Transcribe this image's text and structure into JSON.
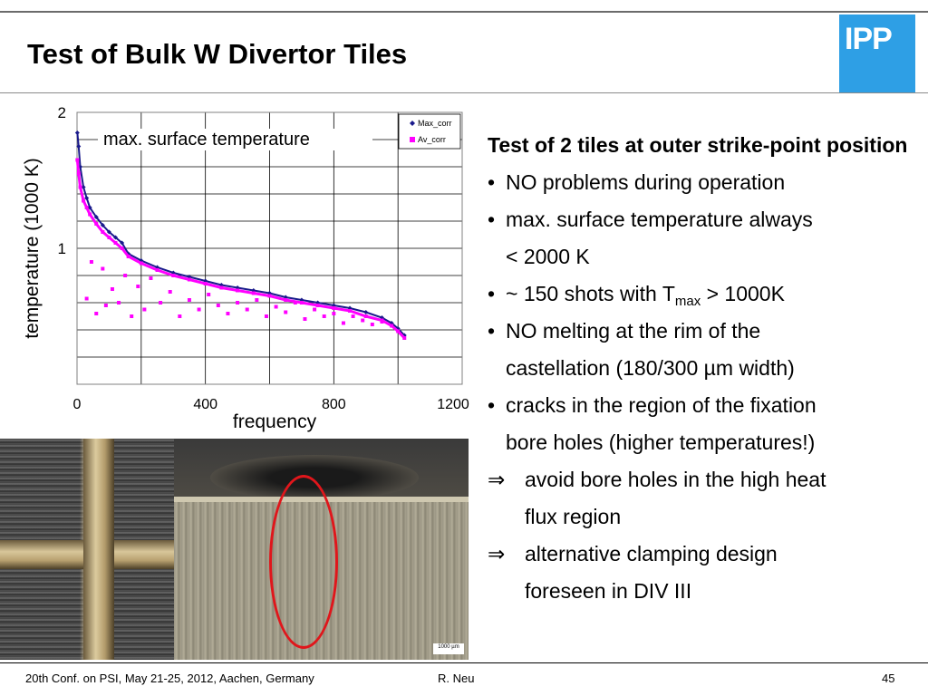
{
  "slide": {
    "title": "Test of Bulk W Divertor Tiles",
    "logo_text": "IPP",
    "accent_color": "#2e9fe5"
  },
  "chart_data": {
    "type": "scatter",
    "annotation": "max. surface temperature",
    "xlabel": "frequency",
    "ylabel": "temperature (1000 K)",
    "xlim": [
      0,
      1200
    ],
    "ylim": [
      0,
      2
    ],
    "x_ticks": [
      "0",
      "400",
      "800",
      "1200"
    ],
    "y_ticks": [
      "1",
      "2"
    ],
    "grid": true,
    "legend_position": "top-right",
    "series": [
      {
        "name": "Max_corr",
        "color": "#1a1a8c",
        "marker": "diamond",
        "x": [
          1,
          5,
          10,
          20,
          30,
          40,
          60,
          80,
          100,
          120,
          140,
          160,
          200,
          250,
          300,
          350,
          400,
          450,
          500,
          550,
          600,
          650,
          700,
          750,
          800,
          850,
          900,
          950,
          980,
          1000,
          1020
        ],
        "y": [
          1.85,
          1.75,
          1.6,
          1.45,
          1.37,
          1.3,
          1.23,
          1.17,
          1.12,
          1.08,
          1.04,
          0.96,
          0.91,
          0.86,
          0.82,
          0.79,
          0.76,
          0.73,
          0.71,
          0.69,
          0.67,
          0.64,
          0.62,
          0.6,
          0.58,
          0.56,
          0.53,
          0.49,
          0.45,
          0.41,
          0.36
        ]
      },
      {
        "name": "Av_corr",
        "color": "#ff00ff",
        "marker": "square",
        "x": [
          1,
          5,
          10,
          20,
          30,
          40,
          60,
          80,
          100,
          120,
          140,
          160,
          200,
          250,
          300,
          350,
          400,
          450,
          500,
          550,
          600,
          650,
          700,
          750,
          800,
          850,
          900,
          950,
          980,
          1000,
          1020
        ],
        "y": [
          1.65,
          1.55,
          1.45,
          1.35,
          1.3,
          1.25,
          1.18,
          1.12,
          1.08,
          1.04,
          1.0,
          0.94,
          0.89,
          0.84,
          0.8,
          0.77,
          0.74,
          0.71,
          0.69,
          0.67,
          0.65,
          0.62,
          0.6,
          0.58,
          0.56,
          0.54,
          0.5,
          0.47,
          0.43,
          0.39,
          0.34
        ]
      },
      {
        "name": "",
        "color": "#ff00ff",
        "marker": "square",
        "x": [
          30,
          45,
          60,
          80,
          90,
          110,
          130,
          150,
          170,
          190,
          210,
          230,
          260,
          290,
          320,
          350,
          380,
          410,
          440,
          470,
          500,
          530,
          560,
          590,
          620,
          650,
          680,
          710,
          740,
          770,
          800,
          830,
          860,
          890,
          920,
          950
        ],
        "y": [
          0.63,
          0.9,
          0.52,
          0.85,
          0.58,
          0.7,
          0.6,
          0.8,
          0.5,
          0.72,
          0.55,
          0.78,
          0.6,
          0.68,
          0.5,
          0.62,
          0.55,
          0.66,
          0.58,
          0.52,
          0.6,
          0.55,
          0.62,
          0.5,
          0.57,
          0.53,
          0.6,
          0.48,
          0.55,
          0.5,
          0.52,
          0.45,
          0.5,
          0.47,
          0.44,
          0.46
        ]
      }
    ]
  },
  "text_block": {
    "heading": "Test of 2 tiles at outer strike-point position",
    "bullet_1": "NO problems during operation",
    "bullet_2a": "max. surface temperature always",
    "bullet_2b": "< 2000 K",
    "bullet_3_pre": "~ 150 shots  with T",
    "bullet_3_sub": "max",
    "bullet_3_post": " > 1000K",
    "bullet_4a": "NO melting at the rim of the",
    "bullet_4b": "castellation (180/300 µm width)",
    "bullet_5a": "cracks in the region of the fixation",
    "bullet_5b": "bore holes (higher temperatures!)",
    "arrow_1a": "avoid bore holes in the high heat",
    "arrow_1b": "flux region",
    "arrow_2a": "alternative clamping design",
    "arrow_2b": "foreseen in DIV III",
    "bullet_marker": "•",
    "arrow_marker": "⇒"
  },
  "photos": {
    "scale_bar_label": "1000 µm"
  },
  "footer": {
    "left": "20th Conf. on  PSI, May 21-25, 2012, Aachen, Germany",
    "center": "R. Neu",
    "right": "45"
  }
}
